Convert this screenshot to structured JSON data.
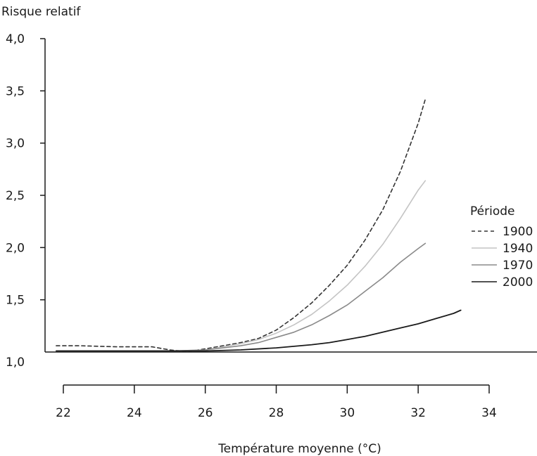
{
  "chart_data": {
    "type": "line",
    "ylabel": "Risque relatif",
    "xlabel": "Température moyenne (°C)",
    "ylim": [
      1.0,
      4.0
    ],
    "xlim": [
      22,
      34
    ],
    "yticks": [
      "1,0",
      "1,5",
      "2,0",
      "2,5",
      "3,0",
      "3,5",
      "4,0"
    ],
    "ytick_values": [
      1.0,
      1.5,
      2.0,
      2.5,
      3.0,
      3.5,
      4.0
    ],
    "xticks": [
      "22",
      "24",
      "26",
      "28",
      "30",
      "32",
      "34"
    ],
    "xtick_values": [
      22,
      24,
      26,
      28,
      30,
      32,
      34
    ],
    "grid": false,
    "legend_title": "Période",
    "legend_position": "right",
    "series": [
      {
        "name": "1900",
        "style": "dashed",
        "color": "#333333",
        "x": [
          21.8,
          22.5,
          23.5,
          24.5,
          25.0,
          25.3,
          25.6,
          26.0,
          26.5,
          27.0,
          27.5,
          28.0,
          28.5,
          29.0,
          29.5,
          30.0,
          30.5,
          31.0,
          31.5,
          32.0,
          32.2
        ],
        "y": [
          1.06,
          1.06,
          1.05,
          1.05,
          1.02,
          1.01,
          1.01,
          1.03,
          1.06,
          1.09,
          1.13,
          1.21,
          1.33,
          1.47,
          1.64,
          1.83,
          2.07,
          2.36,
          2.73,
          3.19,
          3.42
        ]
      },
      {
        "name": "1940",
        "style": "solid",
        "color": "#c4c4c4",
        "x": [
          21.8,
          23.0,
          24.0,
          25.0,
          26.0,
          26.5,
          27.0,
          27.5,
          28.0,
          28.5,
          29.0,
          29.5,
          30.0,
          30.5,
          31.0,
          31.5,
          32.0,
          32.2
        ],
        "y": [
          1.01,
          1.01,
          1.01,
          1.01,
          1.02,
          1.05,
          1.08,
          1.12,
          1.18,
          1.26,
          1.36,
          1.49,
          1.64,
          1.82,
          2.03,
          2.28,
          2.55,
          2.64
        ]
      },
      {
        "name": "1970",
        "style": "solid",
        "color": "#8a8a8a",
        "x": [
          21.8,
          23.0,
          24.0,
          25.0,
          26.0,
          26.5,
          27.0,
          27.5,
          28.0,
          28.5,
          29.0,
          29.5,
          30.0,
          30.5,
          31.0,
          31.5,
          32.0,
          32.2
        ],
        "y": [
          1.01,
          1.01,
          1.01,
          1.01,
          1.02,
          1.04,
          1.06,
          1.09,
          1.14,
          1.19,
          1.26,
          1.35,
          1.45,
          1.58,
          1.71,
          1.86,
          1.99,
          2.04
        ]
      },
      {
        "name": "2000",
        "style": "solid",
        "color": "#1a1a1a",
        "x": [
          21.8,
          23.0,
          24.0,
          25.0,
          26.0,
          27.0,
          28.0,
          29.0,
          29.5,
          30.0,
          30.5,
          31.0,
          31.5,
          32.0,
          32.5,
          33.0,
          33.2
        ],
        "y": [
          1.01,
          1.01,
          1.01,
          1.01,
          1.01,
          1.02,
          1.04,
          1.07,
          1.09,
          1.12,
          1.15,
          1.19,
          1.23,
          1.27,
          1.32,
          1.37,
          1.4
        ]
      }
    ]
  }
}
